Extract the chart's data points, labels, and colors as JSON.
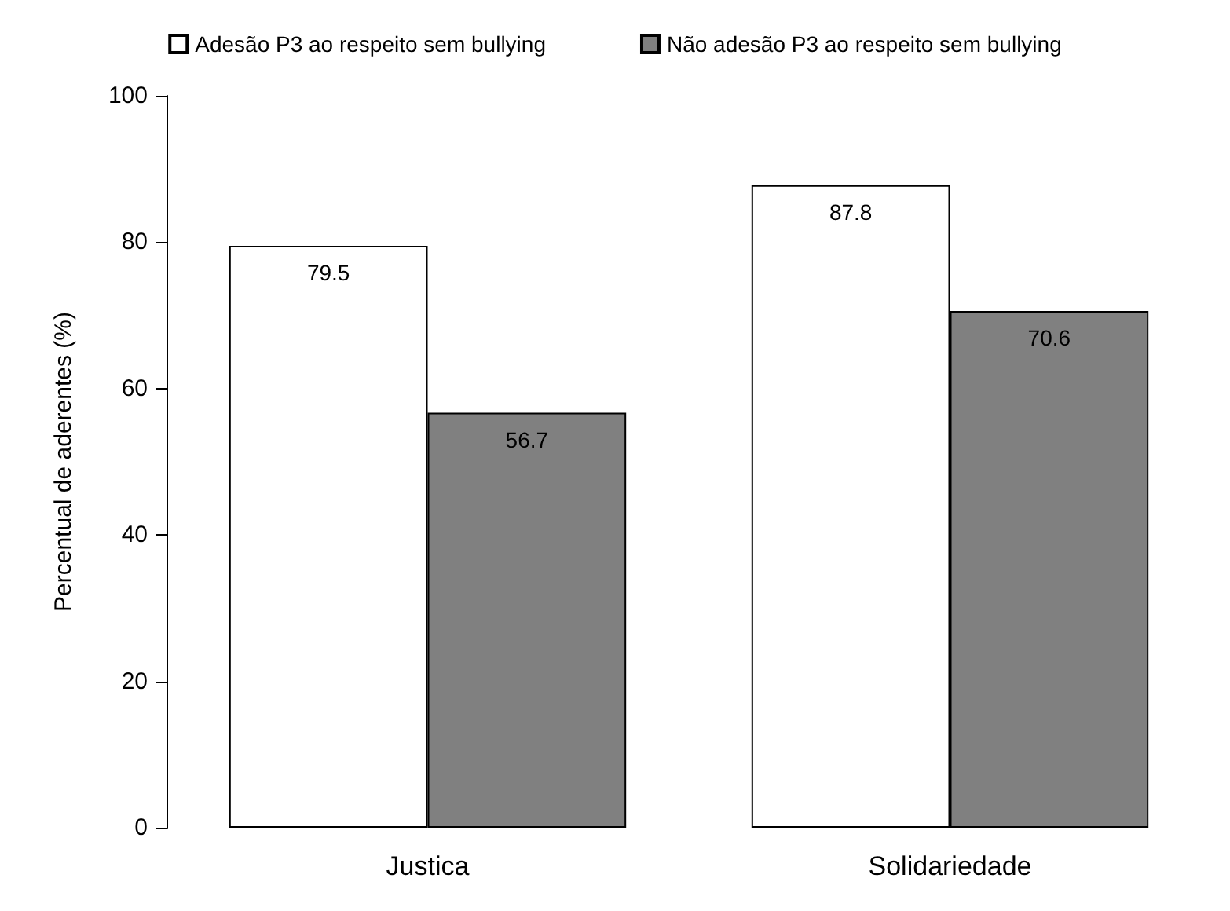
{
  "chart_data": {
    "type": "bar",
    "categories": [
      "Justica",
      "Solidariedade"
    ],
    "ylabel": "Percentual de aderentes (%)",
    "series": [
      {
        "name": "Adesão P3 ao respeito sem bullying",
        "color": "#ffffff",
        "values": [
          79.5,
          87.8
        ]
      },
      {
        "name": "Não adesão P3 ao respeito sem bullying",
        "color": "#808080",
        "values": [
          56.7,
          70.6
        ]
      }
    ],
    "ylim": [
      0,
      100
    ],
    "yticks": [
      0,
      20,
      40,
      60,
      80,
      100
    ],
    "data_labels": true,
    "legend": "top",
    "grid": false
  }
}
